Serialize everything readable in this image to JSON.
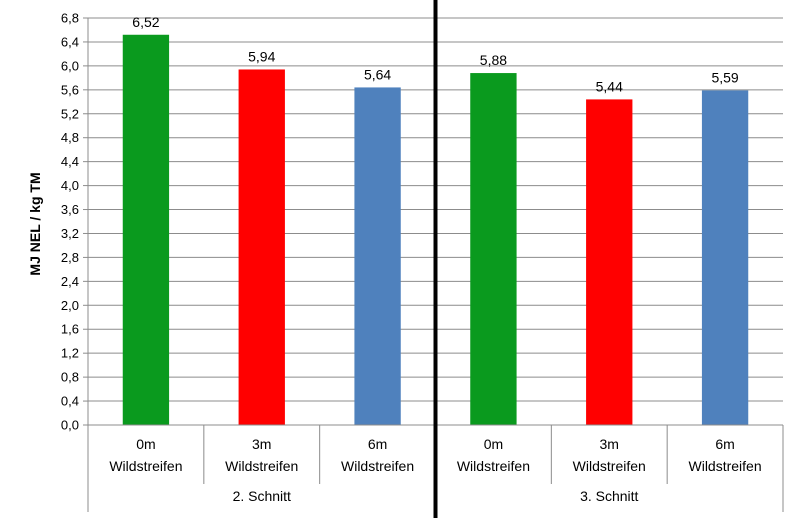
{
  "chart_data": {
    "type": "bar",
    "ylabel": "MJ NEL  / kg TM",
    "ylim": [
      0,
      6.8
    ],
    "ytick_step": 0.4,
    "grid": true,
    "decimal_separator": ",",
    "groups": [
      {
        "label": "2. Schnitt",
        "bars": [
          {
            "category_line1": "0m",
            "category_line2": "Wildstreifen",
            "value": 6.52,
            "value_label": "6,52",
            "color": "#0a9a1e"
          },
          {
            "category_line1": "3m",
            "category_line2": "Wildstreifen",
            "value": 5.94,
            "value_label": "5,94",
            "color": "#ff0000"
          },
          {
            "category_line1": "6m",
            "category_line2": "Wildstreifen",
            "value": 5.64,
            "value_label": "5,64",
            "color": "#4f81bd"
          }
        ]
      },
      {
        "label": "3. Schnitt",
        "bars": [
          {
            "category_line1": "0m",
            "category_line2": "Wildstreifen",
            "value": 5.88,
            "value_label": "5,88",
            "color": "#0a9a1e"
          },
          {
            "category_line1": "3m",
            "category_line2": "Wildstreifen",
            "value": 5.44,
            "value_label": "5,44",
            "color": "#ff0000"
          },
          {
            "category_line1": "6m",
            "category_line2": "Wildstreifen",
            "value": 5.59,
            "value_label": "5,59",
            "color": "#4f81bd"
          }
        ]
      }
    ]
  }
}
